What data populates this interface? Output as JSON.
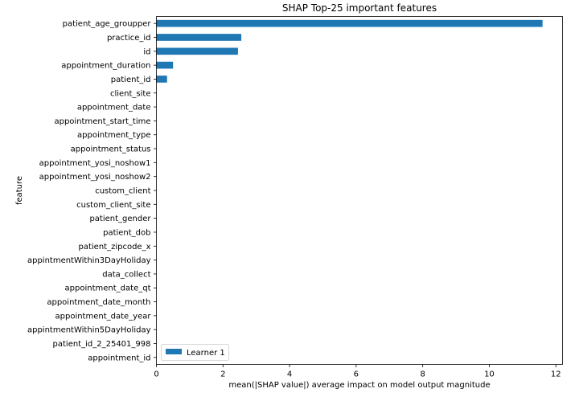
{
  "chart_data": {
    "type": "bar",
    "orientation": "horizontal",
    "title": "SHAP Top-25 important features",
    "xlabel": "mean(|SHAP value|) average impact on model output magnitude",
    "ylabel": "feature",
    "xlim": [
      0,
      12.2
    ],
    "xticks": [
      0,
      2,
      4,
      6,
      8,
      10,
      12
    ],
    "grid": false,
    "legend_position": "bottom-left",
    "categories": [
      "patient_age_groupper",
      "practice_id",
      "id",
      "appointment_duration",
      "patient_id",
      "client_site",
      "appointment_date",
      "appointment_start_time",
      "appointment_type",
      "appointment_status",
      "appointment_yosi_noshow1",
      "appointment_yosi_noshow2",
      "custom_client",
      "custom_client_site",
      "patient_gender",
      "patient_dob",
      "patient_zipcode_x",
      "appintmentWithin3DayHoliday",
      "data_collect",
      "appointment_date_qt",
      "appointment_date_month",
      "appointment_date_year",
      "appintmentWithin5DayHoliday",
      "patient_id_2_25401_998",
      "appointment_id"
    ],
    "series": [
      {
        "name": "Learner 1",
        "color": "#1f77b4",
        "values": [
          11.6,
          2.55,
          2.45,
          0.5,
          0.32,
          0,
          0,
          0,
          0,
          0,
          0,
          0,
          0,
          0,
          0,
          0,
          0,
          0,
          0,
          0,
          0,
          0,
          0,
          0,
          0
        ]
      }
    ]
  }
}
